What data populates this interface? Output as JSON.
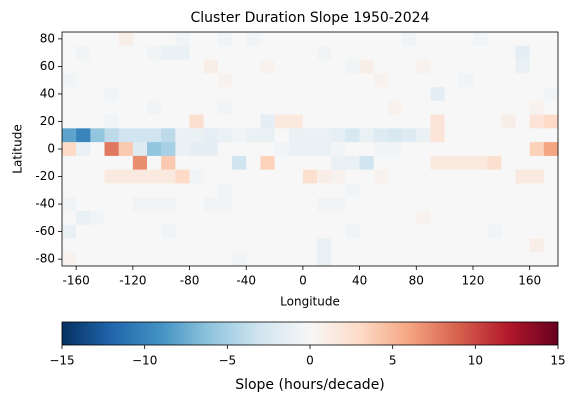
{
  "chart_data": {
    "type": "heatmap",
    "title": "Cluster Duration Slope 1950-2024",
    "xlabel": "Longitude",
    "ylabel": "Latitude",
    "x": [
      -165,
      -155,
      -145,
      -135,
      -125,
      -115,
      -105,
      -95,
      -85,
      -75,
      -65,
      -55,
      -45,
      -35,
      -25,
      -15,
      -5,
      5,
      15,
      25,
      35,
      45,
      55,
      65,
      75,
      85,
      95,
      105,
      115,
      125,
      135,
      145,
      155,
      165,
      175
    ],
    "y": [
      80,
      70,
      60,
      50,
      40,
      30,
      20,
      10,
      0,
      -10,
      -20,
      -30,
      -40,
      -50,
      -60,
      -70,
      -80
    ],
    "values": [
      [
        0,
        0,
        0,
        0,
        1,
        0,
        0,
        0,
        -0.5,
        0,
        0,
        -0.5,
        0,
        -0.5,
        0,
        0,
        0,
        0,
        0,
        0,
        0,
        0,
        0,
        0,
        -0.5,
        0,
        0,
        0,
        0,
        -0.5,
        0,
        0,
        0,
        0,
        0
      ],
      [
        0,
        -0.5,
        0,
        0,
        0,
        0,
        -0.5,
        -1,
        -1,
        0,
        0,
        0,
        0,
        0,
        0,
        0,
        0,
        0,
        -0.5,
        0,
        0,
        0,
        0,
        0,
        0,
        0,
        0,
        0,
        0,
        0,
        0,
        0,
        -1.5,
        0,
        0
      ],
      [
        0,
        0,
        0,
        0,
        0,
        0,
        0,
        0,
        0,
        0,
        1,
        0,
        0,
        0,
        0.5,
        0,
        0,
        0,
        0,
        0,
        -0.5,
        1,
        0,
        0,
        0,
        0.5,
        0,
        0,
        0,
        0,
        0,
        0,
        -1,
        0,
        0
      ],
      [
        -0.5,
        0,
        0,
        0,
        0,
        0,
        0,
        0,
        0,
        0,
        0,
        0.5,
        0,
        0,
        0,
        0,
        0,
        0,
        0,
        0,
        0,
        0,
        0.5,
        0,
        0,
        0,
        0,
        0,
        -0.5,
        0,
        0,
        0,
        0,
        0,
        0
      ],
      [
        0,
        0,
        0,
        -0.5,
        0,
        0,
        0,
        0,
        0,
        0,
        0,
        0,
        0,
        0,
        0,
        0,
        0,
        0,
        0,
        0,
        0,
        0,
        0,
        0,
        0,
        0,
        -1.5,
        0,
        0,
        0,
        0,
        0,
        0,
        0,
        -0.5
      ],
      [
        0,
        0,
        0,
        0,
        0,
        0,
        -0.5,
        0,
        0,
        0,
        0,
        -0.5,
        0,
        0,
        0,
        0,
        0,
        0,
        0,
        0,
        0,
        0,
        0,
        0.5,
        0,
        0,
        0,
        0,
        0,
        0,
        0,
        0,
        0,
        0.5,
        0
      ],
      [
        0,
        0,
        0,
        -0.5,
        0,
        0,
        0,
        0,
        0,
        2.5,
        0,
        0,
        0,
        0,
        -1.5,
        1.5,
        1.5,
        0,
        0,
        0,
        0,
        0,
        0,
        0,
        0,
        0,
        2,
        0,
        0,
        0,
        0,
        1,
        0,
        2,
        3
      ],
      [
        -8,
        -10,
        -6,
        -4,
        -3,
        -3,
        -3,
        -4,
        -1,
        -1,
        -1.5,
        -1,
        -0.5,
        -1,
        -1,
        0,
        -1,
        -1,
        -1,
        -1.5,
        -2.5,
        -1,
        -2,
        -2.5,
        -2,
        -1,
        2,
        0,
        0,
        0,
        0,
        0,
        0,
        0,
        0
      ],
      [
        3,
        -1,
        0,
        8,
        4,
        -2,
        -6,
        -5,
        -1,
        -1.5,
        -1.5,
        0,
        0,
        0,
        0,
        -0.5,
        -1,
        -1,
        -1,
        -0.5,
        0,
        0,
        -0.5,
        -0.5,
        0,
        0,
        0,
        0,
        0,
        0,
        0,
        0,
        0,
        3.5,
        6
      ],
      [
        0,
        0,
        0,
        0,
        0,
        7,
        0,
        4,
        0,
        0,
        0,
        0,
        -3,
        0,
        3.5,
        0,
        0,
        0,
        0,
        -1,
        -1,
        -3,
        0,
        0,
        0,
        0,
        1.5,
        1.5,
        1.5,
        1.5,
        2.5,
        0,
        0,
        0,
        0
      ],
      [
        0,
        0,
        0,
        1.5,
        1.5,
        1.5,
        1.5,
        1.5,
        3,
        -0.5,
        0,
        0,
        0,
        0,
        0,
        0,
        0,
        2.5,
        1,
        0.5,
        0,
        0,
        0.5,
        0,
        0,
        0,
        0,
        0,
        0,
        0,
        0,
        0,
        1.5,
        1.5,
        0
      ],
      [
        0,
        0,
        0,
        0,
        0,
        0,
        0,
        0,
        0,
        0,
        0,
        -0.5,
        0,
        0,
        0,
        0,
        0,
        0,
        0,
        0,
        -0.5,
        0,
        0,
        0,
        0,
        0,
        0,
        0,
        0,
        0,
        0,
        0,
        0,
        0,
        0
      ],
      [
        -0.5,
        0,
        0,
        0,
        0,
        -0.5,
        -0.5,
        -0.5,
        0,
        0,
        -0.5,
        -0.5,
        0,
        0,
        0,
        0,
        0,
        0,
        -0.5,
        -0.5,
        0,
        0,
        0,
        0,
        0,
        0,
        0,
        0,
        0,
        0,
        0,
        0,
        0,
        0,
        0
      ],
      [
        0,
        -1,
        -0.5,
        0,
        0,
        0,
        0,
        0,
        0,
        0,
        0,
        0,
        0,
        0,
        0,
        0,
        0,
        0,
        0,
        0,
        0,
        0,
        0,
        0,
        0,
        0.5,
        0,
        0,
        0,
        0,
        0,
        0,
        0,
        0,
        0
      ],
      [
        -1,
        0,
        0,
        0,
        0,
        0,
        0,
        -0.5,
        0,
        0,
        0,
        0,
        0,
        0,
        0,
        0,
        0,
        0,
        0,
        0,
        -0.5,
        0,
        0,
        0,
        0,
        0,
        0,
        0,
        0,
        0,
        -0.5,
        0,
        0,
        0,
        0
      ],
      [
        0,
        0,
        0,
        0,
        0,
        0,
        0,
        0,
        0,
        0,
        0,
        0,
        0,
        0,
        0,
        0,
        0,
        0,
        -1,
        0,
        0,
        0,
        0,
        0,
        0,
        0,
        0,
        0,
        0,
        0,
        0,
        0,
        0,
        1,
        0
      ],
      [
        0.5,
        0,
        0,
        0,
        0,
        0,
        0,
        0,
        0,
        0,
        0,
        0,
        -0.5,
        0,
        0,
        0,
        0,
        0,
        -1,
        0,
        0,
        0,
        0,
        0,
        0,
        0,
        0,
        0,
        0,
        0,
        0,
        0,
        0,
        0,
        0
      ]
    ],
    "xlim": [
      -170,
      180
    ],
    "ylim": [
      -85,
      85
    ],
    "xticks": [
      -160,
      -120,
      -80,
      -40,
      0,
      40,
      80,
      120,
      160
    ],
    "yticks": [
      -80,
      -60,
      -40,
      -20,
      0,
      20,
      40,
      60,
      80
    ],
    "colormap": "RdBu_r",
    "clim": [
      -15,
      15
    ],
    "cticks": [
      {
        "value": -15,
        "label": "−15"
      },
      {
        "value": -10,
        "label": "−10"
      },
      {
        "value": -5,
        "label": "−5"
      },
      0,
      5,
      10,
      15
    ],
    "colorbar_label": "Slope (hours/decade)"
  }
}
